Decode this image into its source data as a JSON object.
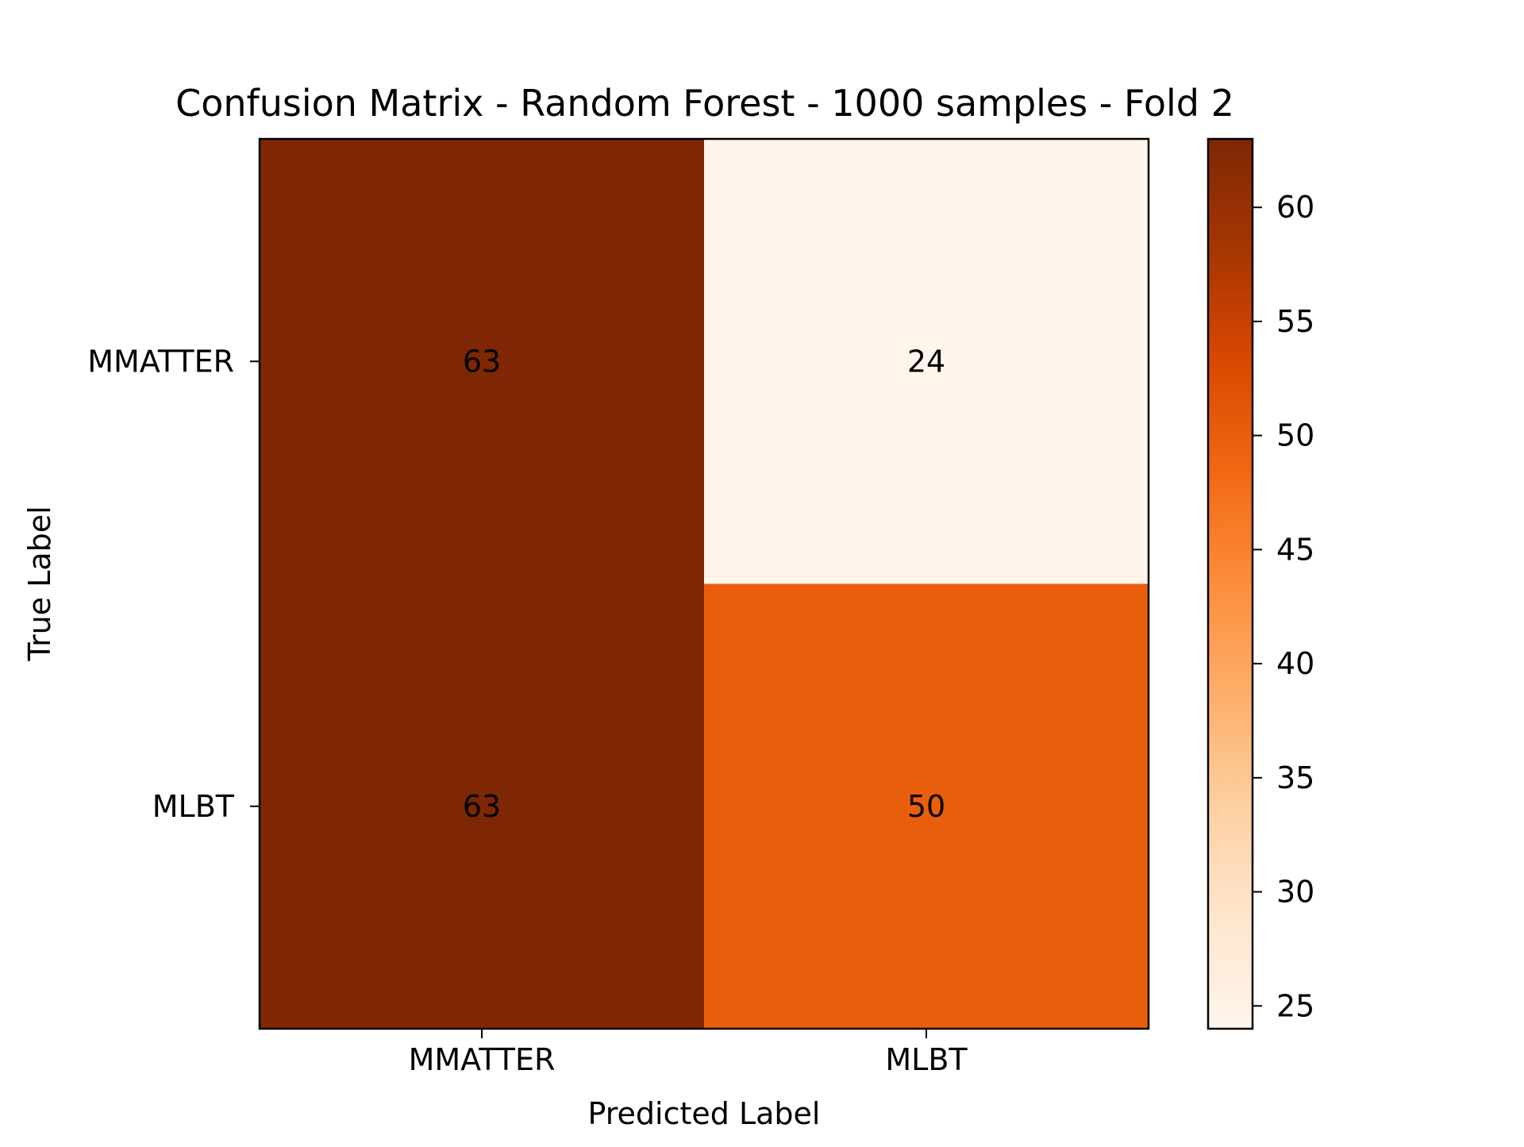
{
  "chart_data": {
    "type": "heatmap",
    "title": "Confusion Matrix - Random Forest - 1000 samples - Fold 2",
    "xlabel": "Predicted Label",
    "ylabel": "True Label",
    "x_categories": [
      "MMATTER",
      "MLBT"
    ],
    "y_categories": [
      "MMATTER",
      "MLBT"
    ],
    "matrix": [
      [
        63,
        24
      ],
      [
        63,
        50
      ]
    ],
    "colormap": "Oranges",
    "colorbar": {
      "range": [
        24,
        63
      ],
      "ticks": [
        25,
        30,
        35,
        40,
        45,
        50,
        55,
        60
      ]
    },
    "colors": {
      "low": "#fff5eb",
      "high": "#7f2704"
    },
    "grid": false
  }
}
